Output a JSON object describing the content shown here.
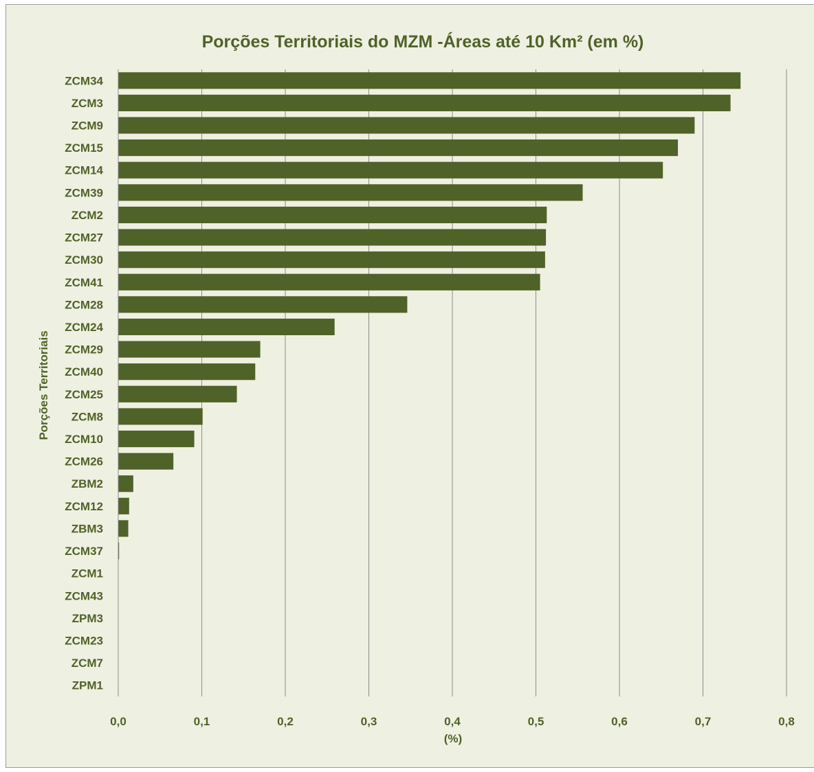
{
  "chart_data": {
    "type": "bar",
    "orientation": "horizontal",
    "title": "Porções Territoriais do MZM -Áreas até 10 Km² (em %)",
    "xlabel": "(%)",
    "ylabel": "Porções Territoriais",
    "xlim": [
      0,
      0.8
    ],
    "x_ticks": [
      "0,0",
      "0,1",
      "0,2",
      "0,3",
      "0,4",
      "0,5",
      "0,6",
      "0,7",
      "0,8"
    ],
    "x_tick_values": [
      0,
      0.1,
      0.2,
      0.3,
      0.4,
      0.5,
      0.6,
      0.7,
      0.8
    ],
    "grid": "vertical",
    "bar_color": "#4f6228",
    "text_color": "#4f6228",
    "background": "#eef0e1",
    "categories": [
      "ZCM34",
      "ZCM3",
      "ZCM9",
      "ZCM15",
      "ZCM14",
      "ZCM39",
      "ZCM2",
      "ZCM27",
      "ZCM30",
      "ZCM41",
      "ZCM28",
      "ZCM24",
      "ZCM29",
      "ZCM40",
      "ZCM25",
      "ZCM8",
      "ZCM10",
      "ZCM26",
      "ZBM2",
      "ZCM12",
      "ZBM3",
      "ZCM37",
      "ZCM1",
      "ZCM43",
      "ZPM3",
      "ZCM23",
      "ZCM7",
      "ZPM1"
    ],
    "values": [
      0.745,
      0.733,
      0.69,
      0.67,
      0.652,
      0.556,
      0.513,
      0.512,
      0.511,
      0.505,
      0.346,
      0.259,
      0.17,
      0.164,
      0.142,
      0.101,
      0.091,
      0.066,
      0.018,
      0.013,
      0.012,
      0.001,
      0,
      0,
      0,
      0,
      0,
      0
    ]
  }
}
